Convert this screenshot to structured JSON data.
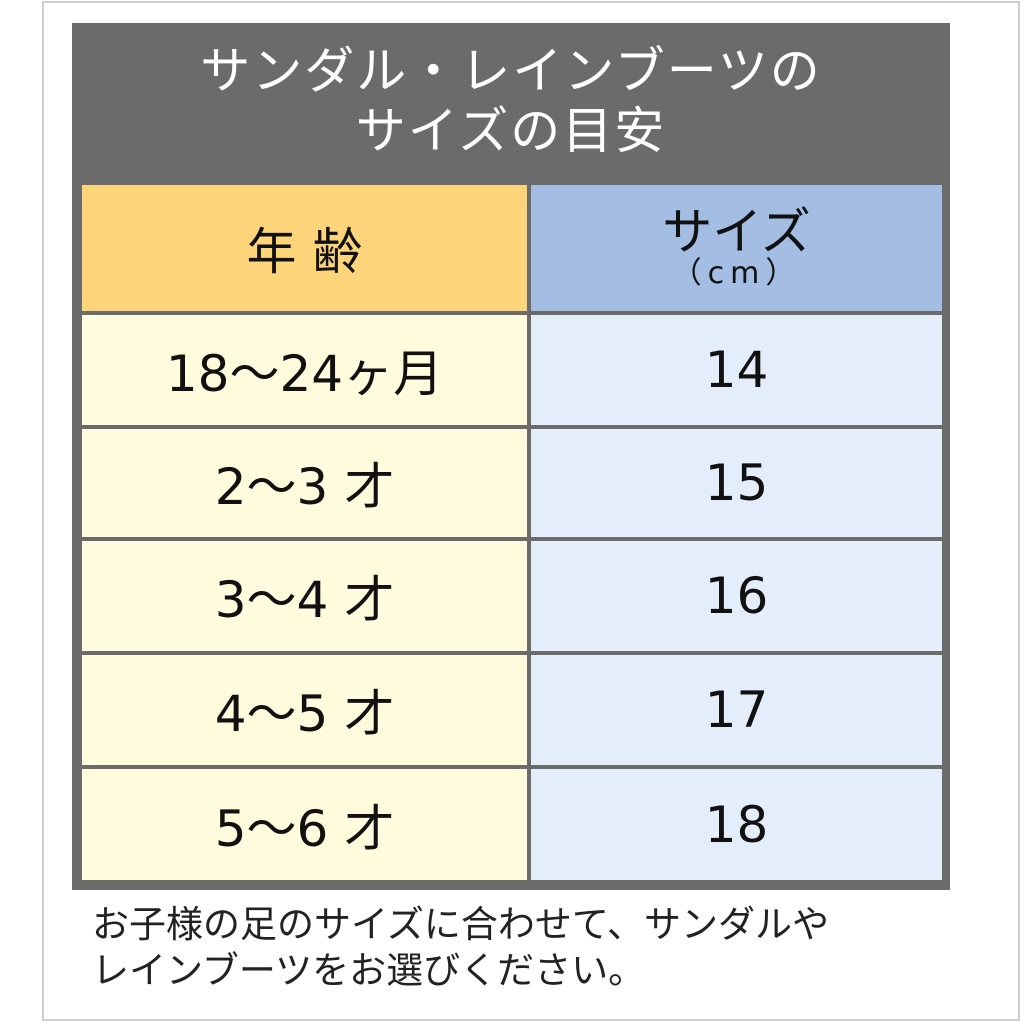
{
  "title": [
    "サンダル・レインブーツの",
    "サイズの目安"
  ],
  "header": {
    "age": "年 齢",
    "size": "サイズ",
    "unit": "（cm）"
  },
  "rows": [
    {
      "age": "18〜24ヶ月",
      "size": "14"
    },
    {
      "age": "2〜3 才",
      "size": "15"
    },
    {
      "age": "3〜4 才",
      "size": "16"
    },
    {
      "age": "4〜5 才",
      "size": "17"
    },
    {
      "age": "5〜6 才",
      "size": "18"
    }
  ],
  "note": [
    "お子様の足のサイズに合わせて、サンダルや",
    "レインブーツをお選びください。"
  ],
  "colors": {
    "title_bg": "#6b6b6b",
    "age_header": "#fcd57a",
    "size_header": "#a3bde3",
    "age_cell": "#fffbdc",
    "size_cell": "#e3eefa"
  }
}
